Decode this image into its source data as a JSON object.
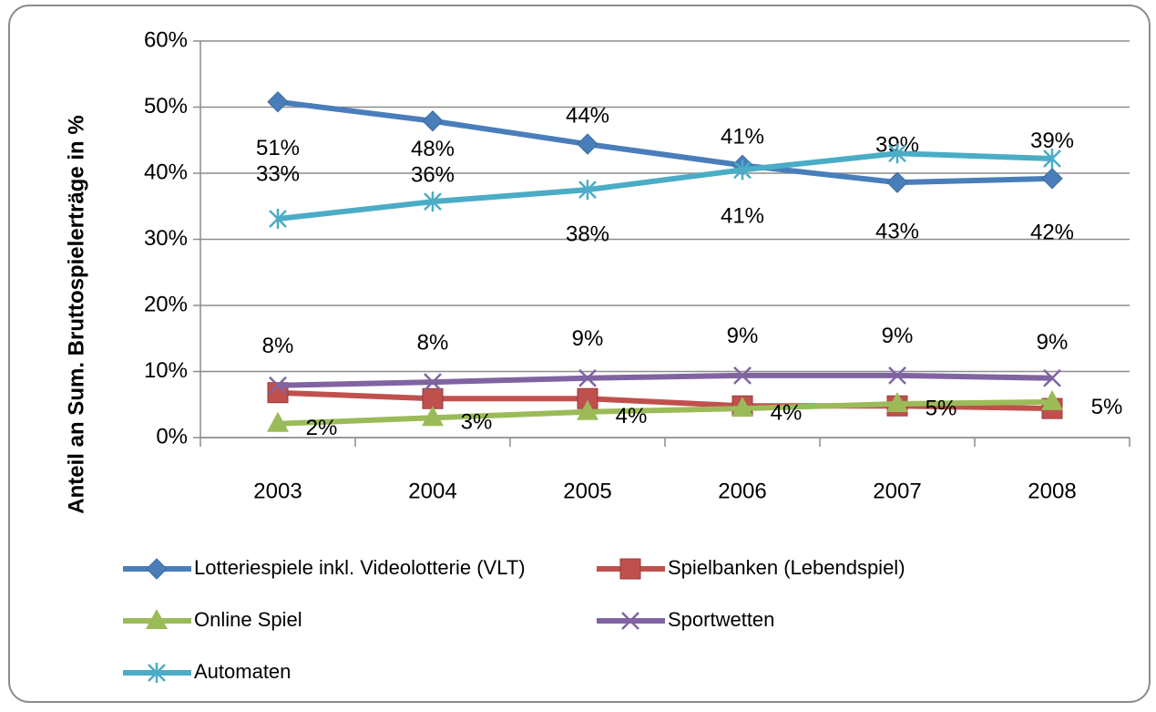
{
  "chart_data": {
    "type": "line",
    "y_label": "Anteil an Sum. Bruttospielerträge in %",
    "categories": [
      "2003",
      "2004",
      "2005",
      "2006",
      "2007",
      "2008"
    ],
    "ylim": [
      0,
      60
    ],
    "yticks": [
      {
        "value": 0,
        "label": "0%"
      },
      {
        "value": 10,
        "label": "10%"
      },
      {
        "value": 20,
        "label": "20%"
      },
      {
        "value": 30,
        "label": "30%"
      },
      {
        "value": 40,
        "label": "40%"
      },
      {
        "value": 50,
        "label": "50%"
      },
      {
        "value": 60,
        "label": "60%"
      }
    ],
    "grid": true,
    "series": [
      {
        "name": "Lotterie­spiele inkl. Videolotterie (VLT)",
        "color": "#4a7ebb",
        "marker": "diamond",
        "values": [
          50.8,
          47.9,
          44.4,
          41.2,
          38.6,
          39.2
        ],
        "value_labels": [
          "51%",
          "48%",
          "44%",
          "41%",
          "39%",
          "39%"
        ]
      },
      {
        "name": "Spielbanken (Lebendspiel)",
        "color": "#c0504d",
        "marker": "square",
        "values": [
          6.8,
          5.9,
          5.9,
          4.8,
          4.8,
          4.4
        ]
      },
      {
        "name": "Online Spiel",
        "color": "#9bbb59",
        "marker": "triangle",
        "values": [
          2.1,
          3.0,
          3.9,
          4.4,
          5.1,
          5.4
        ],
        "value_labels": [
          "2%",
          "3%",
          "4%",
          "4%",
          "5%",
          "5%"
        ]
      },
      {
        "name": "Sportwetten",
        "color": "#8064a2",
        "marker": "x",
        "values": [
          7.9,
          8.4,
          9.0,
          9.4,
          9.4,
          9.0
        ],
        "value_labels": [
          "8%",
          "8%",
          "9%",
          "9%",
          "9%",
          "9%"
        ]
      },
      {
        "name": "Automaten",
        "color": "#4bacc6",
        "marker": "star",
        "values": [
          33.1,
          35.7,
          37.5,
          40.5,
          43.0,
          42.2
        ],
        "value_labels": [
          "33%",
          "36%",
          "38%",
          "41%",
          "43%",
          "42%"
        ]
      }
    ]
  }
}
